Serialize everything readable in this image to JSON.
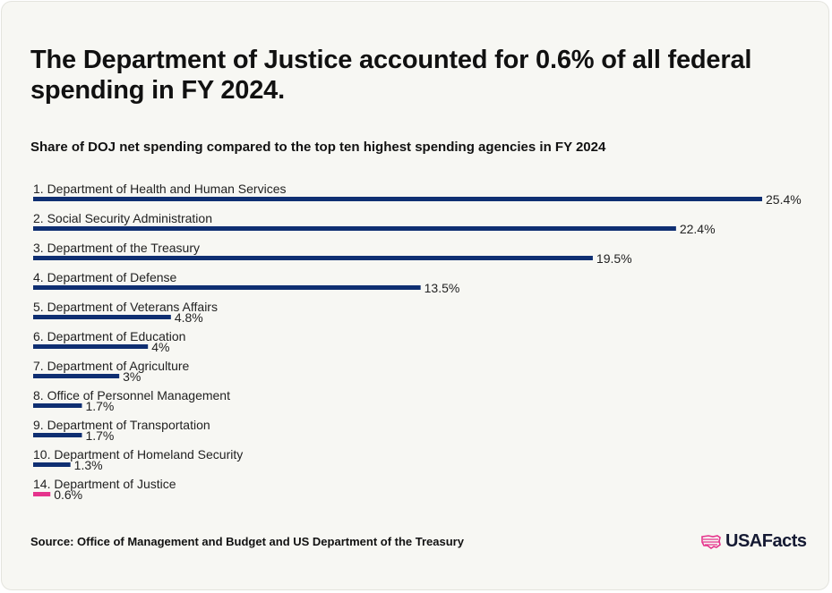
{
  "title": "The Department of Justice accounted for 0.6% of all federal spending in FY 2024.",
  "subtitle": "Share of DOJ net spending compared to the top ten highest spending agencies in FY 2024",
  "source": "Source: Office of Management and Budget and US Department of the Treasury",
  "logo": {
    "text": "USAFacts",
    "icon": "usa-map-icon"
  },
  "colors": {
    "bar": "#0f2f72",
    "highlight": "#e5338c",
    "text": "#222222",
    "background": "#f7f7f3"
  },
  "chart_data": {
    "type": "bar",
    "orientation": "horizontal",
    "categories": [
      "1. Department of Health and Human Services",
      "2. Social Security Administration",
      "3. Department of the Treasury",
      "4. Department of Defense",
      "5. Department of Veterans Affairs",
      "6. Department of Education",
      "7. Department of Agriculture",
      "8. Office of Personnel Management",
      "9. Department of Transportation",
      "10. Department of Homeland Security",
      "14. Department of Justice"
    ],
    "values": [
      25.4,
      22.4,
      19.5,
      13.5,
      4.8,
      4,
      3,
      1.7,
      1.7,
      1.3,
      0.6
    ],
    "value_labels": [
      "25.4%",
      "22.4%",
      "19.5%",
      "13.5%",
      "4.8%",
      "4%",
      "3%",
      "1.7%",
      "1.7%",
      "1.3%",
      "0.6%"
    ],
    "highlight_index": 10,
    "xlim": [
      0,
      25.4
    ],
    "grid": false
  }
}
